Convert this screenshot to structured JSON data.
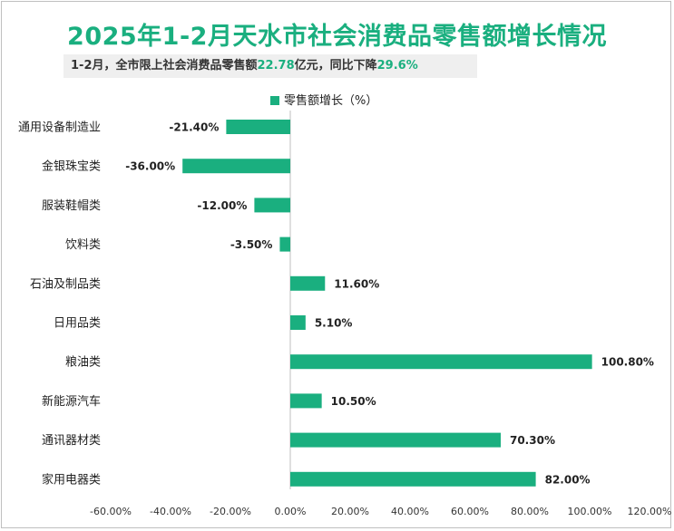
{
  "title": "2025年1-2月天水市社会消费品零售额增长情况",
  "subtitle": {
    "prefix": "1-2月，全市限上社会消费品零售额",
    "amount": "22.78",
    "mid": "亿元，同比下降",
    "rate": "29.6%"
  },
  "colors": {
    "accent": "#1aaf7f",
    "bar": "#1aaf7f"
  },
  "chart_data": {
    "type": "bar",
    "orientation": "horizontal",
    "categories": [
      "通用设备制造业",
      "金银珠宝类",
      "服装鞋帽类",
      "饮料类",
      "石油及制品类",
      "日用品类",
      "粮油类",
      "新能源汽车",
      "通讯器材类",
      "家用电器类"
    ],
    "series": [
      {
        "name": "零售额增长（%）",
        "values": [
          -21.4,
          -36.0,
          -12.0,
          -3.5,
          11.6,
          5.1,
          100.8,
          10.5,
          70.3,
          82.0
        ]
      }
    ],
    "value_labels": [
      "-21.40%",
      "-36.00%",
      "-12.00%",
      "-3.50%",
      "11.60%",
      "5.10%",
      "100.80%",
      "10.50%",
      "70.30%",
      "82.00%"
    ],
    "xlim": [
      -60,
      120
    ],
    "xticks": [
      -60,
      -40,
      -20,
      0,
      20,
      40,
      60,
      80,
      100,
      120
    ],
    "xtick_labels": [
      "-60.00%",
      "-40.00%",
      "-20.00%",
      "0.00%",
      "20.00%",
      "40.00%",
      "60.00%",
      "80.00%",
      "100.00%",
      "120.00%"
    ],
    "legend": "top-center",
    "grid": false
  }
}
